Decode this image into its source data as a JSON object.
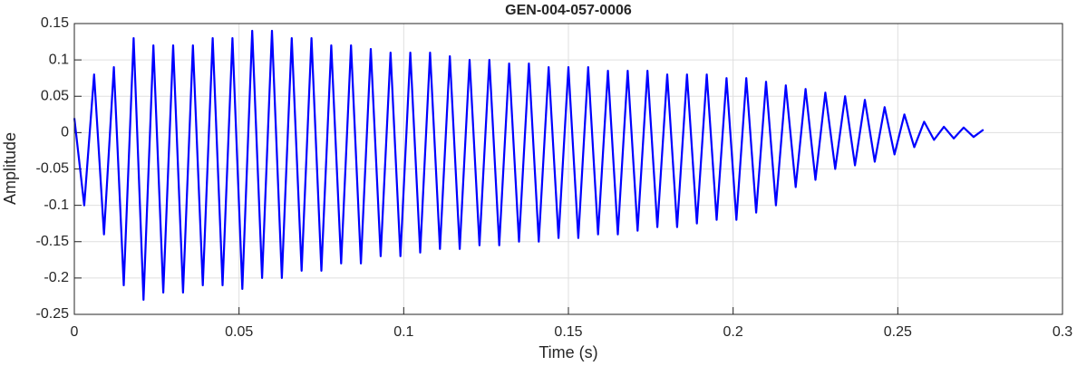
{
  "chart_data": {
    "type": "line",
    "title": "GEN-004-057-0006",
    "xlabel": "Time (s)",
    "ylabel": "Amplitude",
    "x": [
      0,
      0.003,
      0.006,
      0.009,
      0.012,
      0.015,
      0.018,
      0.021,
      0.024,
      0.027,
      0.03,
      0.033,
      0.036,
      0.039,
      0.042,
      0.045,
      0.048,
      0.051,
      0.054,
      0.057,
      0.06,
      0.063,
      0.066,
      0.069,
      0.072,
      0.075,
      0.078,
      0.081,
      0.084,
      0.087,
      0.09,
      0.093,
      0.096,
      0.099,
      0.102,
      0.105,
      0.108,
      0.111,
      0.114,
      0.117,
      0.12,
      0.123,
      0.126,
      0.129,
      0.132,
      0.135,
      0.138,
      0.141,
      0.144,
      0.147,
      0.15,
      0.153,
      0.156,
      0.159,
      0.162,
      0.165,
      0.168,
      0.171,
      0.174,
      0.177,
      0.18,
      0.183,
      0.186,
      0.189,
      0.192,
      0.195,
      0.198,
      0.201,
      0.204,
      0.207,
      0.21,
      0.213,
      0.216,
      0.219,
      0.222,
      0.225,
      0.228,
      0.231,
      0.234,
      0.237,
      0.24,
      0.243,
      0.246,
      0.249,
      0.252,
      0.255,
      0.258,
      0.261,
      0.264,
      0.267,
      0.27,
      0.273,
      0.276
    ],
    "values": [
      0.02,
      -0.1,
      0.08,
      -0.14,
      0.09,
      -0.21,
      0.13,
      -0.23,
      0.12,
      -0.22,
      0.12,
      -0.22,
      0.12,
      -0.21,
      0.13,
      -0.21,
      0.13,
      -0.215,
      0.14,
      -0.2,
      0.14,
      -0.2,
      0.13,
      -0.19,
      0.13,
      -0.19,
      0.12,
      -0.18,
      0.12,
      -0.18,
      0.115,
      -0.17,
      0.11,
      -0.17,
      0.11,
      -0.165,
      0.11,
      -0.16,
      0.105,
      -0.16,
      0.1,
      -0.155,
      0.1,
      -0.155,
      0.095,
      -0.15,
      0.095,
      -0.15,
      0.09,
      -0.145,
      0.09,
      -0.145,
      0.09,
      -0.14,
      0.085,
      -0.14,
      0.085,
      -0.135,
      0.085,
      -0.13,
      0.08,
      -0.13,
      0.08,
      -0.125,
      0.08,
      -0.12,
      0.075,
      -0.12,
      0.075,
      -0.11,
      0.07,
      -0.1,
      0.065,
      -0.075,
      0.06,
      -0.065,
      0.055,
      -0.05,
      0.05,
      -0.045,
      0.045,
      -0.04,
      0.035,
      -0.03,
      0.025,
      -0.02,
      0.015,
      -0.01,
      0.008,
      -0.008,
      0.007,
      -0.006,
      0.004
    ],
    "color": "#0000ff",
    "xlim": [
      0,
      0.3
    ],
    "xticks": [
      0,
      0.05,
      0.1,
      0.15,
      0.2,
      0.25,
      0.3
    ],
    "ylim": [
      -0.25,
      0.15
    ],
    "yticks": [
      -0.25,
      -0.2,
      -0.15,
      -0.1,
      -0.05,
      0,
      0.05,
      0.1,
      0.15
    ],
    "grid": true
  }
}
